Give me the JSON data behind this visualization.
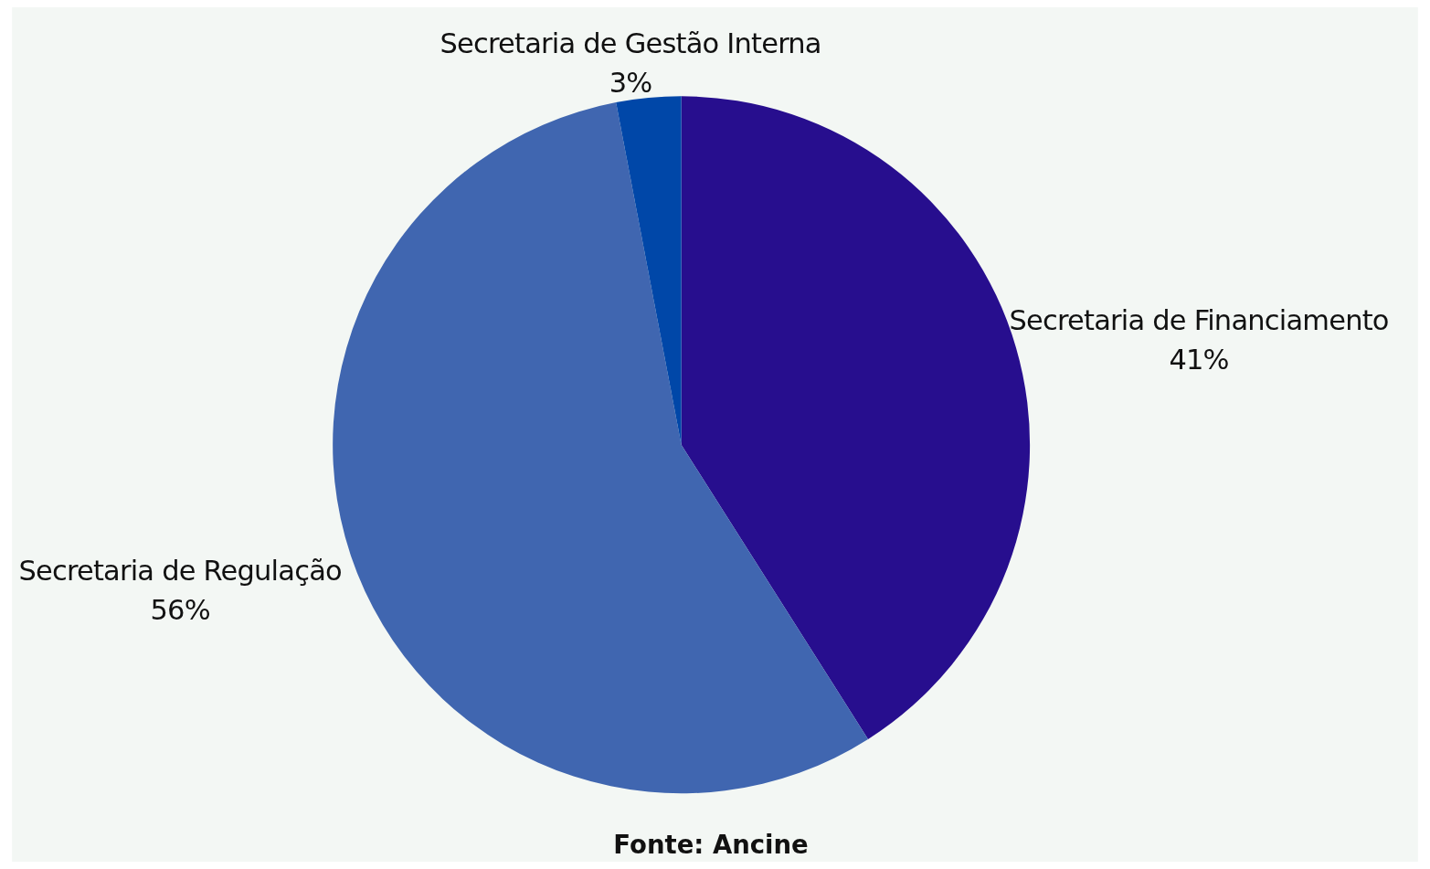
{
  "chart_data": {
    "type": "pie",
    "categories": [
      "Secretaria de Financiamento",
      "Secretaria de Regulação",
      "Secretaria de Gestão Interna"
    ],
    "values": [
      41,
      56,
      3
    ],
    "colors": [
      "#270e8e",
      "#4066b0",
      "#0047a8"
    ],
    "value_labels": [
      "41%",
      "56%",
      "3%"
    ],
    "annotations": [
      "Fonte: Ancine"
    ]
  }
}
